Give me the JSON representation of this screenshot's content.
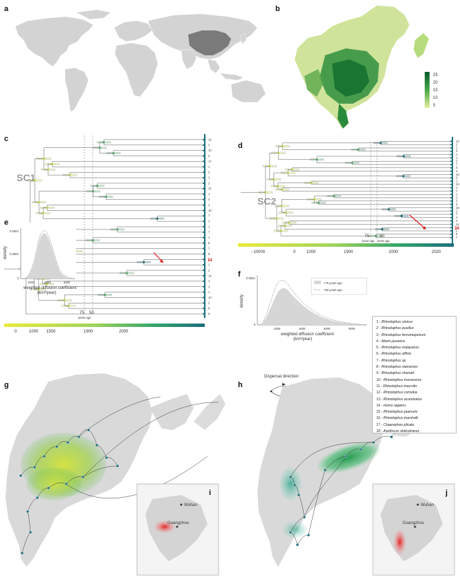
{
  "panels": {
    "a": "a",
    "b": "b",
    "c": "c",
    "d": "d",
    "e": "e",
    "f": "f",
    "g": "g",
    "h": "h",
    "i": "i",
    "j": "j"
  },
  "colorbar_b": {
    "ticks": [
      "25",
      "20",
      "15",
      "10",
      "5"
    ]
  },
  "tree_c": {
    "label": "SC1",
    "marker_red": "14",
    "years_ago_label": "years ago",
    "line_75": "75",
    "line_50": "50"
  },
  "tree_d": {
    "label": "SC2",
    "marker_red": "14",
    "years_ago_label": "years ago",
    "line_75": "75",
    "line_50": "50"
  },
  "timescale_c": {
    "ticks": [
      "0",
      "1000",
      "1500",
      "1900",
      "2000"
    ]
  },
  "timescale_d": {
    "ticks": [
      "−10000",
      "0",
      "1000",
      "1900",
      "2000",
      "2020"
    ]
  },
  "density_e": {
    "ylabel": "density",
    "xlabel": "weighted diffusion coefficient",
    "xunit": "(km²/year)",
    "yticks": [
      "0.0004",
      "0.0002",
      "0"
    ],
    "xticks": [
      "2000",
      "4000",
      "6000"
    ]
  },
  "density_f": {
    "ylabel": "density",
    "xlabel": "weighted diffusion coefficient",
    "xunit": "(km²/year)",
    "yticks": [
      "0.0004",
      "0"
    ],
    "xticks": [
      "2000",
      "4000",
      "6000",
      "8000"
    ],
    "legend": [
      "<75 years ago",
      "<50 years ago"
    ]
  },
  "species_legend": [
    {
      "num": "1",
      "name": "Rhinolophus sinicus"
    },
    {
      "num": "2",
      "name": "Rhinolophus pusillus"
    },
    {
      "num": "3",
      "name": "Rhinolophus ferrumequinum"
    },
    {
      "num": "4",
      "name": "Manis javanica"
    },
    {
      "num": "5",
      "name": "Rhinolophus malayanus"
    },
    {
      "num": "6",
      "name": "Rhinolophus affinis"
    },
    {
      "num": "7",
      "name": "Rhinolophus sp."
    },
    {
      "num": "8",
      "name": "Rhinolophus siamensis"
    },
    {
      "num": "9",
      "name": "Rhinolophus shameli"
    },
    {
      "num": "10",
      "name": "Rhinolophus monoceros"
    },
    {
      "num": "11",
      "name": "Rhinolophus macrotis"
    },
    {
      "num": "12",
      "name": "Rhinolophus cornutus"
    },
    {
      "num": "13",
      "name": "Rhinolophus acuminatus"
    },
    {
      "num": "14",
      "name": "Homo sapiens"
    },
    {
      "num": "15",
      "name": "Rhinolophus pearsoni"
    },
    {
      "num": "16",
      "name": "Rhinolophus marshalli"
    },
    {
      "num": "17",
      "name": "Chaerephon plicata"
    },
    {
      "num": "18",
      "name": "Aselliscus stoliczkanus"
    }
  ],
  "dispersal": {
    "title": "Dispersal direction:"
  },
  "inset_i": {
    "city1": "Wuhan",
    "city2": "Guangzhou"
  },
  "inset_j": {
    "city1": "Wuhan",
    "city2": "Guangzhou"
  },
  "tip_labels_c": [
    "12",
    "1",
    "10",
    "2",
    "17",
    "1",
    "2",
    "1",
    "2",
    "11",
    "1",
    "4",
    "1",
    "10",
    "7",
    "1",
    "1",
    "7",
    "1",
    "5",
    "7",
    "6",
    "2",
    "1",
    "2",
    "14",
    "1",
    "1",
    "1",
    "10",
    "2",
    "6",
    "9"
  ],
  "tip_labels_d": [
    "12",
    "1",
    "1",
    "4",
    "1",
    "1",
    "2",
    "7",
    "4",
    "2",
    "10",
    "2",
    "1",
    "13",
    "1",
    "7",
    "1",
    "1",
    "1",
    "2",
    "16",
    "1",
    "7",
    "1",
    "2",
    "14",
    "1",
    "2",
    "5",
    "7"
  ],
  "colors": {
    "land": "#cfcfcf",
    "china": "#7d7d7d",
    "teal": "#1f6e78",
    "green": "#3aa35a",
    "yellow": "#e3e84a",
    "red": "#e31a1c"
  }
}
